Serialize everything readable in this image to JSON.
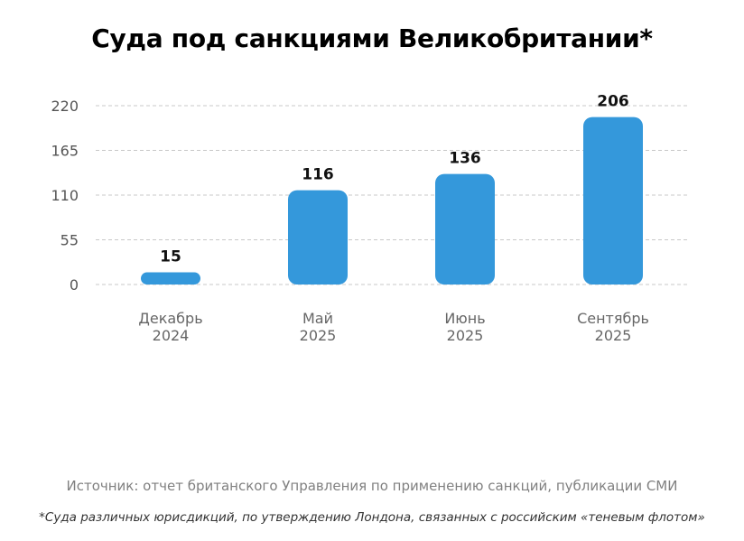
{
  "chart_data": {
    "type": "bar",
    "title": "Суда под санкциями Великобритании*",
    "categories": [
      [
        "Декабрь",
        "2024"
      ],
      [
        "Май",
        "2025"
      ],
      [
        "Июнь",
        "2025"
      ],
      [
        "Сентябрь",
        "2025"
      ]
    ],
    "values": [
      15,
      116,
      136,
      206
    ],
    "yticks": [
      0,
      55,
      110,
      165,
      220
    ],
    "ylim": [
      0,
      220
    ],
    "xlabel": "",
    "ylabel": "",
    "grid": true,
    "legend": "none",
    "bar_color": "#3498db"
  },
  "footer": {
    "source": "Источник: отчет британского Управления по применению санкций, публикации СМИ",
    "note": "*Суда различных юрисдикций, по утверждению Лондона, связанных с российским «теневым флотом»"
  }
}
